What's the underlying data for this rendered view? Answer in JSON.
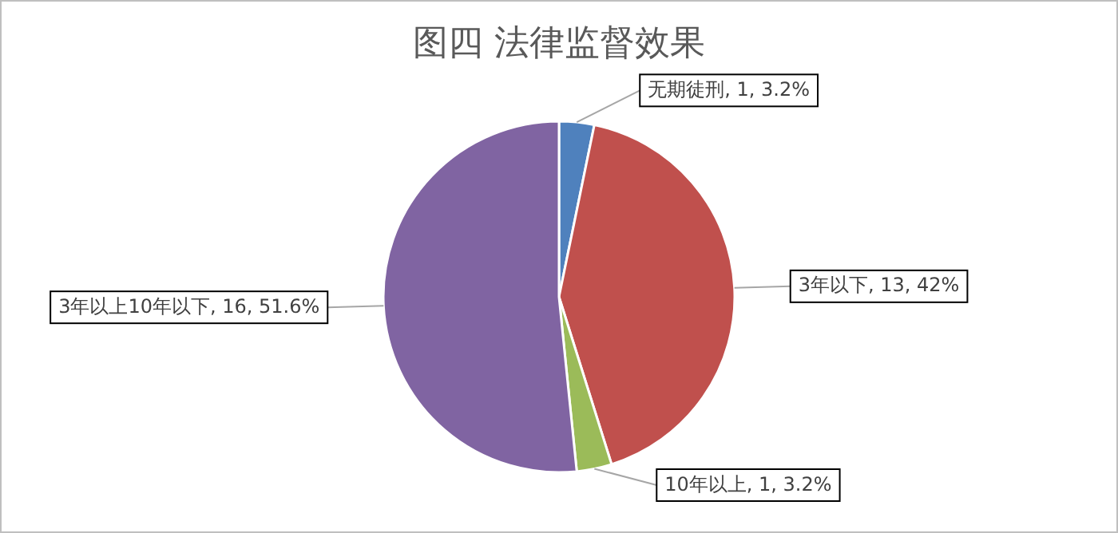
{
  "chart_data": {
    "type": "pie",
    "title": "图四  法律监督效果",
    "categories": [
      "无期徒刑",
      "3年以下",
      "10年以上",
      "3年以上10年以下"
    ],
    "values": [
      1,
      13,
      1,
      16
    ],
    "colors": [
      "#4f81bd",
      "#c0504d",
      "#9bbb59",
      "#8064a2"
    ],
    "value_labels": [
      "1, 3.2%",
      "13, 42%",
      "1, 3.2%",
      "16, 51.6%"
    ]
  }
}
